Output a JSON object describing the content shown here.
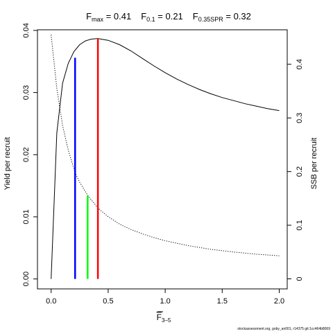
{
  "chart_data": {
    "type": "line",
    "title_parts": [
      {
        "main": "F",
        "sub": "max",
        "rest": " = 0.41"
      },
      {
        "main": "F",
        "sub": "0.1",
        "rest": " = 0.21"
      },
      {
        "main": "F",
        "sub": "0.35SPR",
        "rest": " = 0.32"
      }
    ],
    "xlabel_main": "F",
    "xlabel_sub": "3–5",
    "ylabel": "Yield per recruit",
    "y2label": "SSB per recruit",
    "xlim": [
      0,
      2
    ],
    "ylim": [
      0,
      0.04
    ],
    "y2lim": [
      0,
      0.4625
    ],
    "x_ticks": [
      {
        "v": 0,
        "label": "0.0"
      },
      {
        "v": 0.5,
        "label": "0.5"
      },
      {
        "v": 1.0,
        "label": "1.0"
      },
      {
        "v": 1.5,
        "label": "1.5"
      },
      {
        "v": 2.0,
        "label": "2.0"
      }
    ],
    "y_ticks": [
      {
        "v": 0,
        "label": "0.00"
      },
      {
        "v": 0.01,
        "label": "0.01"
      },
      {
        "v": 0.02,
        "label": "0.02"
      },
      {
        "v": 0.03,
        "label": "0.03"
      },
      {
        "v": 0.04,
        "label": "0.04"
      }
    ],
    "y2_ticks": [
      {
        "v": 0,
        "label": "0"
      },
      {
        "v": 0.1,
        "label": "0.1"
      },
      {
        "v": 0.2,
        "label": "0.2"
      },
      {
        "v": 0.3,
        "label": "0.3"
      },
      {
        "v": 0.4,
        "label": "0.4"
      }
    ],
    "series": [
      {
        "style": "solid",
        "axis": "left",
        "x": [
          0,
          0.05,
          0.1,
          0.15,
          0.2,
          0.25,
          0.3,
          0.35,
          0.41,
          0.5,
          0.6,
          0.7,
          0.8,
          0.9,
          1.0,
          1.1,
          1.2,
          1.3,
          1.4,
          1.5,
          1.6,
          1.7,
          1.8,
          1.9,
          2.0
        ],
        "y": [
          0,
          0.0235,
          0.0315,
          0.0347,
          0.0366,
          0.0377,
          0.0383,
          0.0386,
          0.0387,
          0.0384,
          0.0377,
          0.0367,
          0.0355,
          0.0343,
          0.0332,
          0.0322,
          0.0313,
          0.0305,
          0.0298,
          0.0292,
          0.0287,
          0.0282,
          0.0278,
          0.0274,
          0.0271
        ]
      },
      {
        "style": "dotted",
        "axis": "right",
        "x": [
          0,
          0.05,
          0.1,
          0.15,
          0.21,
          0.25,
          0.32,
          0.41,
          0.5,
          0.6,
          0.7,
          0.8,
          0.9,
          1.0,
          1.2,
          1.4,
          1.6,
          1.8,
          2.0
        ],
        "y": [
          0.455,
          0.355,
          0.286,
          0.24,
          0.198,
          0.18,
          0.156,
          0.132,
          0.116,
          0.102,
          0.092,
          0.084,
          0.077,
          0.071,
          0.062,
          0.055,
          0.05,
          0.046,
          0.043
        ]
      }
    ],
    "reference_lines": [
      {
        "x": 0.41,
        "y_top": 0.0387,
        "color": "#ff0000"
      },
      {
        "x": 0.21,
        "y_top": 0.0356,
        "color": "#0000ff"
      },
      {
        "x": 0.32,
        "y_top": 0.0134,
        "color": "#00ff00"
      }
    ]
  },
  "footer": "stockassessment.org, goby_an001, r14375 git:1cc464b8069"
}
